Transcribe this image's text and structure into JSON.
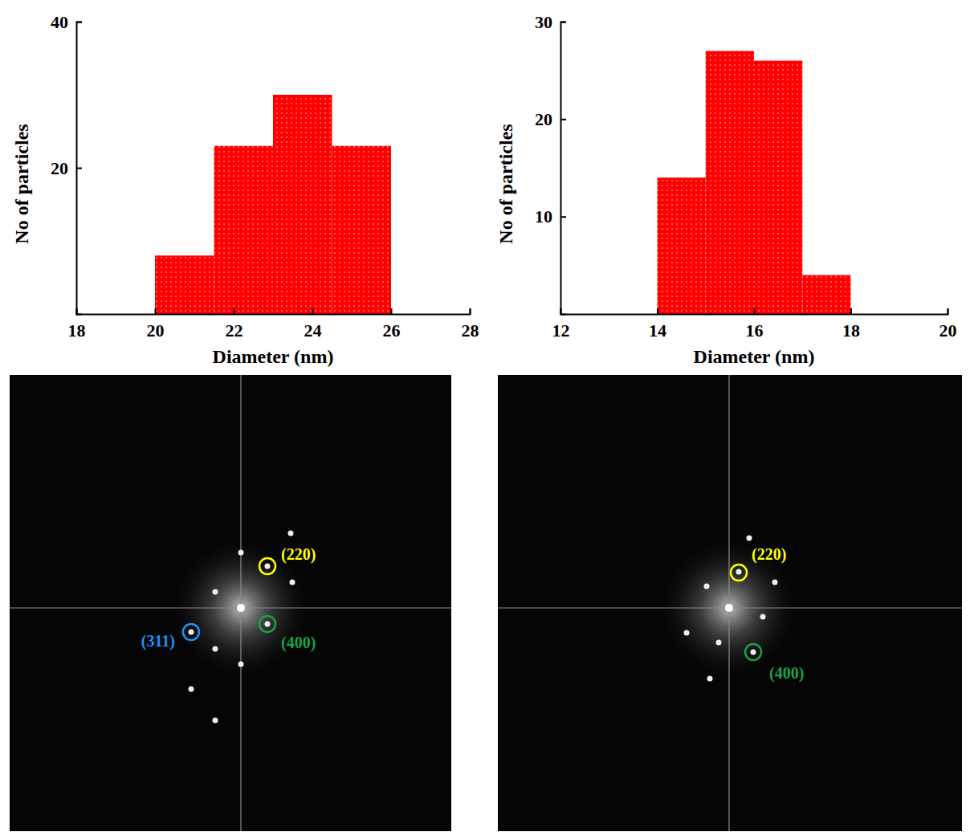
{
  "chart_data": [
    {
      "type": "histogram",
      "bins": [
        20,
        21.5,
        23,
        24.5,
        26
      ],
      "values": [
        8,
        23,
        30,
        23
      ],
      "color": "#ff0000",
      "xlim": [
        18,
        28
      ],
      "xticks": [
        18,
        20,
        22,
        24,
        26,
        28
      ],
      "ylim": [
        0,
        40
      ],
      "yticks": [
        20,
        40
      ],
      "x_label": "Diameter (nm)",
      "y_label": "No of particles"
    },
    {
      "type": "histogram",
      "bins": [
        14,
        15,
        16,
        17,
        18
      ],
      "values": [
        14,
        27,
        26,
        4
      ],
      "color": "#ff0000",
      "xlim": [
        12,
        20
      ],
      "xticks": [
        12,
        14,
        16,
        18,
        20
      ],
      "ylim": [
        0,
        30
      ],
      "yticks": [
        10,
        20,
        30
      ],
      "x_label": "Diameter (nm)",
      "y_label": "No of particles"
    }
  ],
  "fft_images": [
    {
      "spots": [
        {
          "label": "(220)",
          "color": "#ffff00"
        },
        {
          "label": "(311)",
          "color": "#1e90ff"
        },
        {
          "label": "(400)",
          "color": "#1aa04a"
        }
      ]
    },
    {
      "spots": [
        {
          "label": "(220)",
          "color": "#ffff00"
        },
        {
          "label": "(400)",
          "color": "#1aa04a"
        }
      ]
    }
  ]
}
